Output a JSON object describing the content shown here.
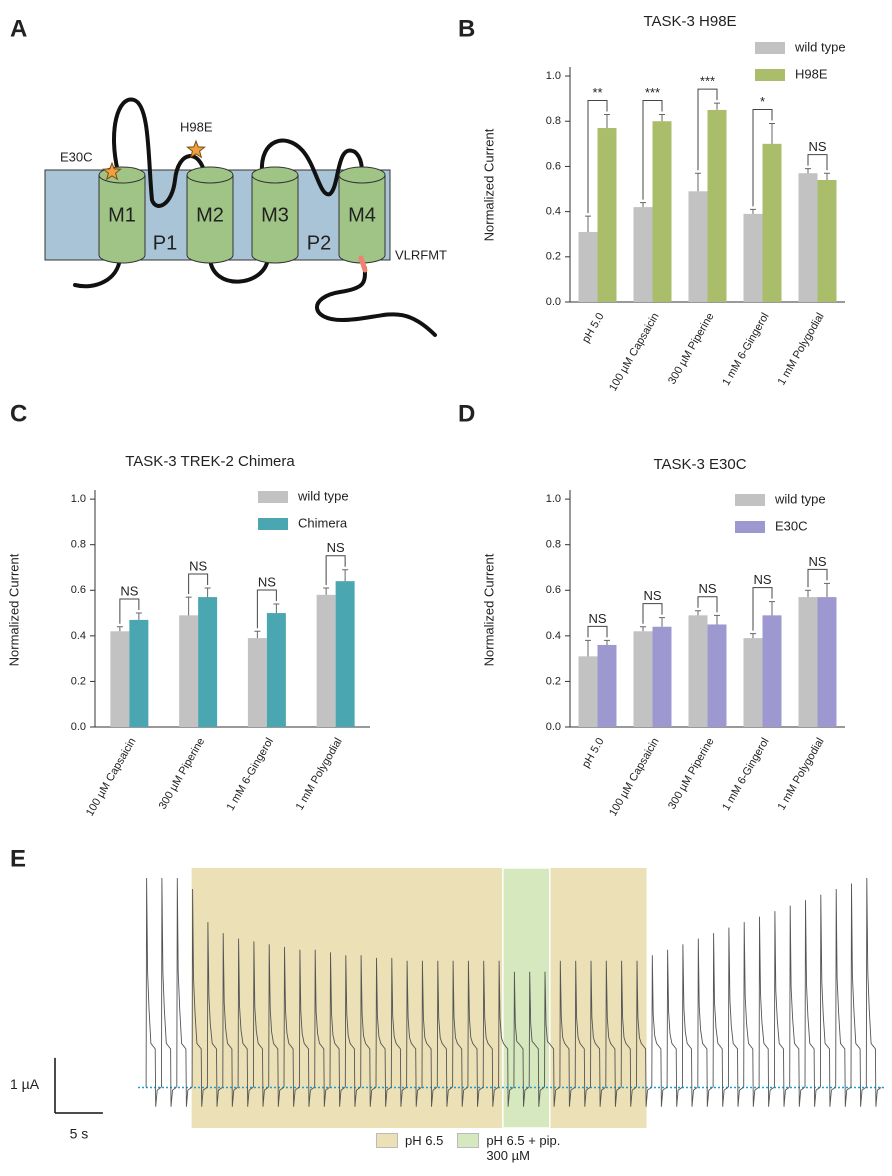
{
  "panel_labels": [
    "A",
    "B",
    "C",
    "D",
    "E"
  ],
  "diagram": {
    "helices": [
      "M1",
      "M2",
      "M3",
      "M4"
    ],
    "pores": [
      "P1",
      "P2"
    ],
    "mutations": [
      "E30C",
      "H98E"
    ],
    "motif": "VLRFMT"
  },
  "chart_data": [
    {
      "type": "bar",
      "title": "TASK-3 H98E",
      "ylabel": "Normalized Current",
      "categories": [
        "pH 5.0",
        "100 µM Capsaicin",
        "300 µM Piperine",
        "1 mM 6-Gingerol",
        "1 mM Polygodial"
      ],
      "series": [
        {
          "name": "wild type",
          "color": "#c2c2c2",
          "values": [
            0.31,
            0.42,
            0.49,
            0.39,
            0.57
          ],
          "errors": [
            0.07,
            0.02,
            0.08,
            0.02,
            0.02
          ]
        },
        {
          "name": "H98E",
          "color": "#a9bd6a",
          "values": [
            0.77,
            0.8,
            0.85,
            0.7,
            0.54
          ],
          "errors": [
            0.06,
            0.03,
            0.03,
            0.09,
            0.03
          ]
        }
      ],
      "annotations": [
        "**",
        "***",
        "***",
        "*",
        "NS"
      ],
      "ylim": [
        0,
        1.04
      ],
      "yticks": [
        {
          "value": 0,
          "label": "0.0"
        },
        0.2,
        0.4,
        0.6,
        0.8,
        {
          "value": 1,
          "label": "1.0"
        }
      ],
      "legend": "upper right"
    },
    {
      "type": "bar",
      "title": "TASK-3 TREK-2 Chimera",
      "ylabel": "Normalized Current",
      "categories": [
        "100 µM Capsaicin",
        "300 µM Piperine",
        "1 mM 6-Gingerol",
        "1 mM Polygodial"
      ],
      "series": [
        {
          "name": "wild type",
          "color": "#c2c2c2",
          "values": [
            0.42,
            0.49,
            0.39,
            0.58
          ],
          "errors": [
            0.02,
            0.08,
            0.03,
            0.03
          ]
        },
        {
          "name": "Chimera",
          "color": "#4aa6b1",
          "values": [
            0.47,
            0.57,
            0.5,
            0.64
          ],
          "errors": [
            0.03,
            0.04,
            0.04,
            0.05
          ]
        }
      ],
      "annotations": [
        "NS",
        "NS",
        "NS",
        "NS"
      ],
      "ylim": [
        0,
        1.04
      ],
      "yticks": [
        {
          "value": 0,
          "label": "0.0"
        },
        0.2,
        0.4,
        0.6,
        0.8,
        {
          "value": 1,
          "label": "1.0"
        }
      ],
      "legend": "upper right"
    },
    {
      "type": "bar",
      "title": "TASK-3 E30C",
      "ylabel": "Normalized Current",
      "categories": [
        "pH 5.0",
        "100 µM Capsaicin",
        "300 µM Piperine",
        "1 mM 6-Gingerol",
        "1 mM Polygodial"
      ],
      "series": [
        {
          "name": "wild type",
          "color": "#c2c2c2",
          "values": [
            0.31,
            0.42,
            0.49,
            0.39,
            0.57
          ],
          "errors": [
            0.07,
            0.02,
            0.02,
            0.02,
            0.03
          ]
        },
        {
          "name": "E30C",
          "color": "#9d99d0",
          "values": [
            0.36,
            0.44,
            0.45,
            0.49,
            0.57
          ],
          "errors": [
            0.02,
            0.04,
            0.04,
            0.06,
            0.06
          ]
        }
      ],
      "annotations": [
        "NS",
        "NS",
        "NS",
        "NS",
        "NS"
      ],
      "ylim": [
        0,
        1.04
      ],
      "yticks": [
        {
          "value": 0,
          "label": "0.0"
        },
        0.2,
        0.4,
        0.6,
        0.8,
        {
          "value": 1,
          "label": "1.0"
        }
      ],
      "legend": "upper right"
    },
    {
      "type": "trace",
      "x": [
        0.9,
        2.5,
        4.1,
        5.7,
        7.3,
        8.9,
        10.5,
        12.1,
        13.7,
        15.3,
        16.9,
        18.5,
        20.1,
        21.7,
        23.3,
        24.9,
        26.5,
        28.1,
        29.7,
        31.3,
        32.9,
        34.5,
        36.1,
        37.7,
        39.3,
        40.9,
        42.5,
        44.1,
        45.7,
        47.3,
        48.9,
        50.5,
        52.1,
        53.7,
        55.3,
        56.9,
        58.5,
        60.1,
        61.7,
        63.3,
        64.9,
        66.5,
        68.1,
        69.7,
        71.3,
        72.9,
        74.5,
        76.1
      ],
      "values": [
        3.8,
        3.8,
        3.8,
        3.6,
        3.0,
        2.8,
        2.7,
        2.65,
        2.6,
        2.55,
        2.5,
        2.5,
        2.45,
        2.4,
        2.4,
        2.35,
        2.35,
        2.3,
        2.3,
        2.3,
        2.3,
        2.3,
        2.3,
        2.3,
        2.1,
        2.1,
        2.1,
        2.3,
        2.3,
        2.3,
        2.3,
        2.3,
        2.3,
        2.4,
        2.5,
        2.6,
        2.7,
        2.8,
        2.9,
        3.0,
        3.1,
        3.2,
        3.3,
        3.4,
        3.5,
        3.6,
        3.7,
        3.8
      ],
      "xlim": [
        0,
        78
      ],
      "ylim": [
        -0.5,
        4.0
      ],
      "regions": [
        {
          "name": "pH 6.5",
          "color": "#ece0b6",
          "start": 5.6,
          "end": 53.1
        },
        {
          "name": "pH 6.5 + pip. 300 µM",
          "color": "#d6e8bd",
          "start": 38.1,
          "end": 43.0
        }
      ],
      "scalebar": {
        "y": 1,
        "y_label": "1 µA",
        "x": 5,
        "x_label": "5 s"
      }
    }
  ]
}
